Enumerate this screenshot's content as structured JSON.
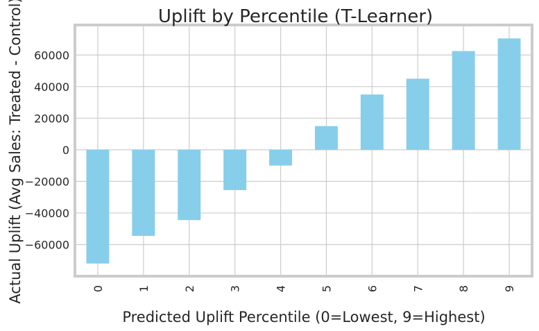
{
  "chart_data": {
    "type": "bar",
    "title": "Uplift by Percentile (T-Learner)",
    "xlabel": "Predicted Uplift Percentile (0=Lowest, 9=Highest)",
    "ylabel": "Actual Uplift (Avg Sales: Treated - Control)",
    "categories": [
      "0",
      "1",
      "2",
      "3",
      "4",
      "5",
      "6",
      "7",
      "8",
      "9"
    ],
    "values": [
      -72000,
      -54500,
      -44500,
      -25500,
      -10000,
      15000,
      35000,
      45000,
      62500,
      70500
    ],
    "ylim": [
      -80000,
      79000
    ],
    "yticks": [
      -60000,
      -40000,
      -20000,
      0,
      20000,
      40000,
      60000
    ],
    "ytick_labels": [
      "−60000",
      "−40000",
      "−20000",
      "0",
      "20000",
      "40000",
      "60000"
    ],
    "grid": true,
    "colors": {
      "bar": "#87ceeb",
      "grid": "#cccccc",
      "frame": "#cccccc",
      "text": "#262626"
    }
  }
}
